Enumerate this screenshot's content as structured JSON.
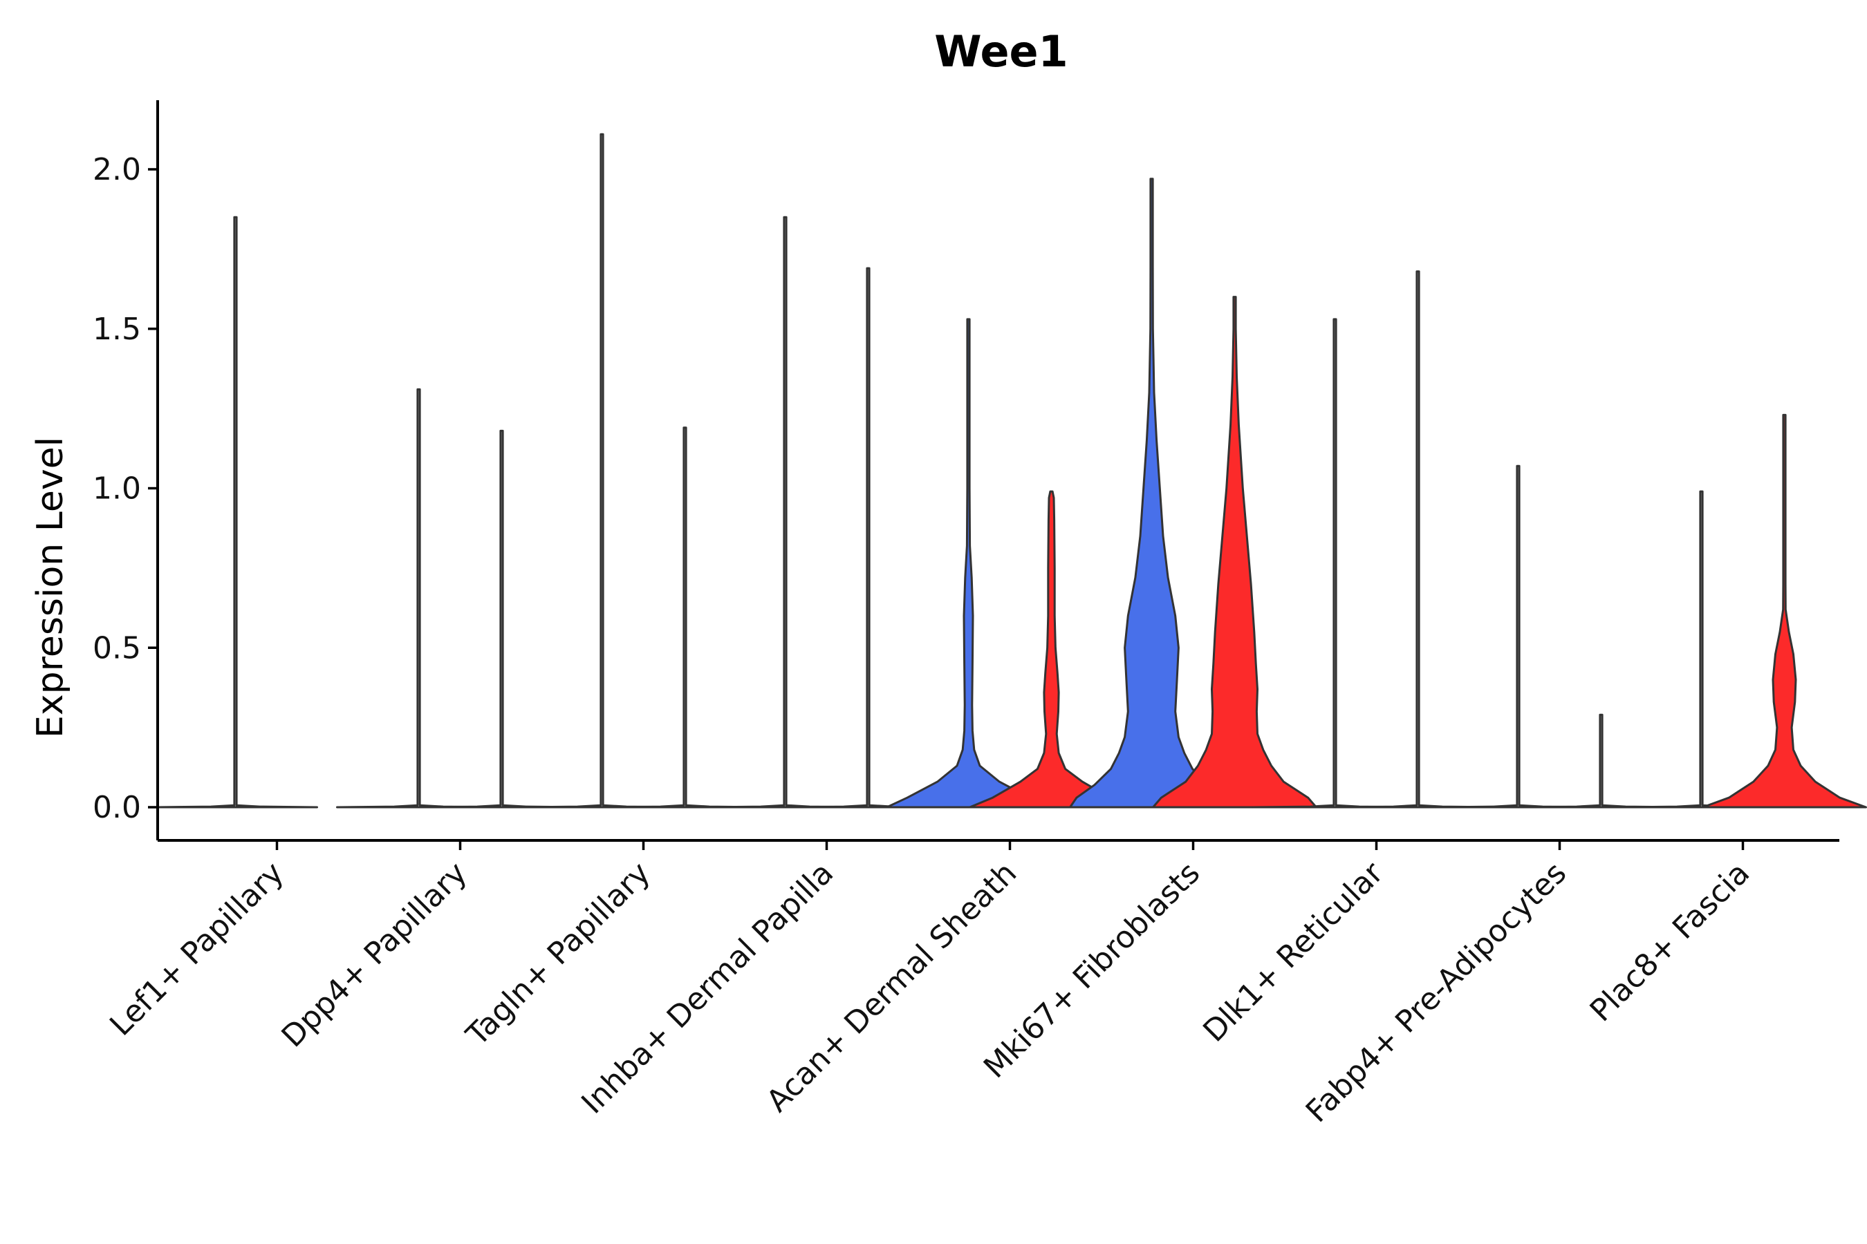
{
  "chart_data": {
    "type": "violin",
    "title": "Wee1",
    "xlabel": "",
    "ylabel": "Expression Level",
    "ylim": [
      -0.1,
      2.2
    ],
    "yticks": [
      0.0,
      0.5,
      1.0,
      1.5,
      2.0
    ],
    "ytick_labels": [
      "0.0",
      "0.5",
      "1.0",
      "1.5",
      "2.0"
    ],
    "grid": false,
    "legend": "none",
    "colors": {
      "blue": "#4870EA",
      "red": "#FC2A2A",
      "none": "#ffffff"
    },
    "categories": [
      "Lef1+ Papillary",
      "Dpp4+ Papillary",
      "Tagln+ Papillary",
      "Inhba+ Dermal Papilla",
      "Acan+ Dermal Sheath",
      "Mki67+ Fibroblasts",
      "Dlk1+ Reticular",
      "Fabp4+ Pre-Adipocytes",
      "Plac8+ Fascia"
    ],
    "violins": [
      {
        "category": "Lef1+ Papillary",
        "group": 0,
        "max": 1.85,
        "fill": "none",
        "profile": [
          [
            0,
            1
          ],
          [
            0.002,
            0.3
          ],
          [
            0.006,
            0.003
          ],
          [
            1.85,
            0.003
          ]
        ]
      },
      {
        "category": "Lef1+ Papillary",
        "group": 1,
        "max": 0.0,
        "fill": "none",
        "profile": []
      },
      {
        "category": "Dpp4+ Papillary",
        "group": 0,
        "max": 1.31,
        "fill": "none",
        "profile": [
          [
            0,
            1
          ],
          [
            0.002,
            0.3
          ],
          [
            0.006,
            0.003
          ],
          [
            1.31,
            0.003
          ]
        ]
      },
      {
        "category": "Dpp4+ Papillary",
        "group": 1,
        "max": 1.18,
        "fill": "none",
        "profile": [
          [
            0,
            1
          ],
          [
            0.002,
            0.3
          ],
          [
            0.006,
            0.003
          ],
          [
            1.18,
            0.003
          ]
        ]
      },
      {
        "category": "Tagln+ Papillary",
        "group": 0,
        "max": 2.11,
        "fill": "none",
        "profile": [
          [
            0,
            1
          ],
          [
            0.002,
            0.3
          ],
          [
            0.006,
            0.003
          ],
          [
            2.11,
            0.003
          ]
        ]
      },
      {
        "category": "Tagln+ Papillary",
        "group": 1,
        "max": 1.19,
        "fill": "none",
        "profile": [
          [
            0,
            1
          ],
          [
            0.002,
            0.3
          ],
          [
            0.006,
            0.003
          ],
          [
            1.19,
            0.003
          ]
        ]
      },
      {
        "category": "Inhba+ Dermal Papilla",
        "group": 0,
        "max": 1.85,
        "fill": "none",
        "profile": [
          [
            0,
            1
          ],
          [
            0.002,
            0.3
          ],
          [
            0.006,
            0.003
          ],
          [
            1.85,
            0.003
          ]
        ]
      },
      {
        "category": "Inhba+ Dermal Papilla",
        "group": 1,
        "max": 1.69,
        "fill": "none",
        "profile": [
          [
            0,
            1
          ],
          [
            0.002,
            0.3
          ],
          [
            0.006,
            0.003
          ],
          [
            1.69,
            0.003
          ]
        ]
      },
      {
        "category": "Acan+ Dermal Sheath",
        "group": 0,
        "max": 1.53,
        "fill": "blue",
        "profile": [
          [
            0,
            1
          ],
          [
            0.03,
            0.75
          ],
          [
            0.08,
            0.38
          ],
          [
            0.13,
            0.14
          ],
          [
            0.18,
            0.07
          ],
          [
            0.24,
            0.05
          ],
          [
            0.32,
            0.045
          ],
          [
            0.45,
            0.05
          ],
          [
            0.6,
            0.055
          ],
          [
            0.72,
            0.04
          ],
          [
            0.82,
            0.018
          ],
          [
            1.0,
            0.005
          ],
          [
            1.2,
            0.003
          ],
          [
            1.53,
            0.003
          ]
        ]
      },
      {
        "category": "Acan+ Dermal Sheath",
        "group": 1,
        "max": 0.99,
        "fill": "red",
        "profile": [
          [
            0,
            1
          ],
          [
            0.03,
            0.72
          ],
          [
            0.08,
            0.38
          ],
          [
            0.12,
            0.17
          ],
          [
            0.17,
            0.09
          ],
          [
            0.23,
            0.065
          ],
          [
            0.3,
            0.085
          ],
          [
            0.36,
            0.09
          ],
          [
            0.42,
            0.075
          ],
          [
            0.5,
            0.05
          ],
          [
            0.6,
            0.04
          ],
          [
            0.75,
            0.04
          ],
          [
            0.9,
            0.035
          ],
          [
            0.97,
            0.03
          ],
          [
            0.99,
            0.01
          ]
        ]
      },
      {
        "category": "Mki67+ Fibroblasts",
        "group": 0,
        "max": 1.97,
        "fill": "blue",
        "profile": [
          [
            0,
            1
          ],
          [
            0.03,
            0.92
          ],
          [
            0.07,
            0.7
          ],
          [
            0.12,
            0.5
          ],
          [
            0.17,
            0.4
          ],
          [
            0.22,
            0.33
          ],
          [
            0.3,
            0.29
          ],
          [
            0.4,
            0.31
          ],
          [
            0.5,
            0.33
          ],
          [
            0.6,
            0.29
          ],
          [
            0.72,
            0.2
          ],
          [
            0.85,
            0.14
          ],
          [
            1.0,
            0.1
          ],
          [
            1.15,
            0.06
          ],
          [
            1.3,
            0.03
          ],
          [
            1.5,
            0.015
          ],
          [
            1.7,
            0.008
          ],
          [
            1.97,
            0.003
          ]
        ]
      },
      {
        "category": "Mki67+ Fibroblasts",
        "group": 1,
        "max": 1.6,
        "fill": "red",
        "profile": [
          [
            0,
            1
          ],
          [
            0.03,
            0.9
          ],
          [
            0.08,
            0.6
          ],
          [
            0.13,
            0.45
          ],
          [
            0.18,
            0.35
          ],
          [
            0.23,
            0.28
          ],
          [
            0.3,
            0.27
          ],
          [
            0.37,
            0.28
          ],
          [
            0.45,
            0.26
          ],
          [
            0.55,
            0.24
          ],
          [
            0.7,
            0.2
          ],
          [
            0.85,
            0.15
          ],
          [
            1.0,
            0.1
          ],
          [
            1.2,
            0.05
          ],
          [
            1.35,
            0.025
          ],
          [
            1.5,
            0.008
          ],
          [
            1.6,
            0.003
          ]
        ]
      },
      {
        "category": "Dlk1+ Reticular",
        "group": 0,
        "max": 1.53,
        "fill": "none",
        "profile": [
          [
            0,
            1
          ],
          [
            0.002,
            0.3
          ],
          [
            0.006,
            0.003
          ],
          [
            1.53,
            0.003
          ]
        ]
      },
      {
        "category": "Dlk1+ Reticular",
        "group": 1,
        "max": 1.68,
        "fill": "none",
        "profile": [
          [
            0,
            1
          ],
          [
            0.002,
            0.3
          ],
          [
            0.006,
            0.003
          ],
          [
            1.68,
            0.003
          ]
        ]
      },
      {
        "category": "Fabp4+ Pre-Adipocytes",
        "group": 0,
        "max": 1.07,
        "fill": "none",
        "profile": [
          [
            0,
            1
          ],
          [
            0.002,
            0.3
          ],
          [
            0.006,
            0.003
          ],
          [
            1.07,
            0.003
          ]
        ]
      },
      {
        "category": "Fabp4+ Pre-Adipocytes",
        "group": 1,
        "max": 0.29,
        "fill": "none",
        "profile": [
          [
            0,
            1
          ],
          [
            0.002,
            0.3
          ],
          [
            0.006,
            0.003
          ],
          [
            0.29,
            0.003
          ]
        ]
      },
      {
        "category": "Plac8+ Fascia",
        "group": 0,
        "max": 0.99,
        "fill": "none",
        "profile": [
          [
            0,
            1
          ],
          [
            0.002,
            0.3
          ],
          [
            0.006,
            0.003
          ],
          [
            0.99,
            0.003
          ]
        ]
      },
      {
        "category": "Plac8+ Fascia",
        "group": 1,
        "max": 1.23,
        "fill": "red",
        "profile": [
          [
            0,
            1
          ],
          [
            0.03,
            0.68
          ],
          [
            0.08,
            0.38
          ],
          [
            0.13,
            0.2
          ],
          [
            0.18,
            0.11
          ],
          [
            0.25,
            0.09
          ],
          [
            0.33,
            0.13
          ],
          [
            0.4,
            0.14
          ],
          [
            0.48,
            0.11
          ],
          [
            0.55,
            0.055
          ],
          [
            0.62,
            0.015
          ],
          [
            0.7,
            0.005
          ],
          [
            1.0,
            0.003
          ],
          [
            1.23,
            0.003
          ]
        ]
      }
    ]
  }
}
